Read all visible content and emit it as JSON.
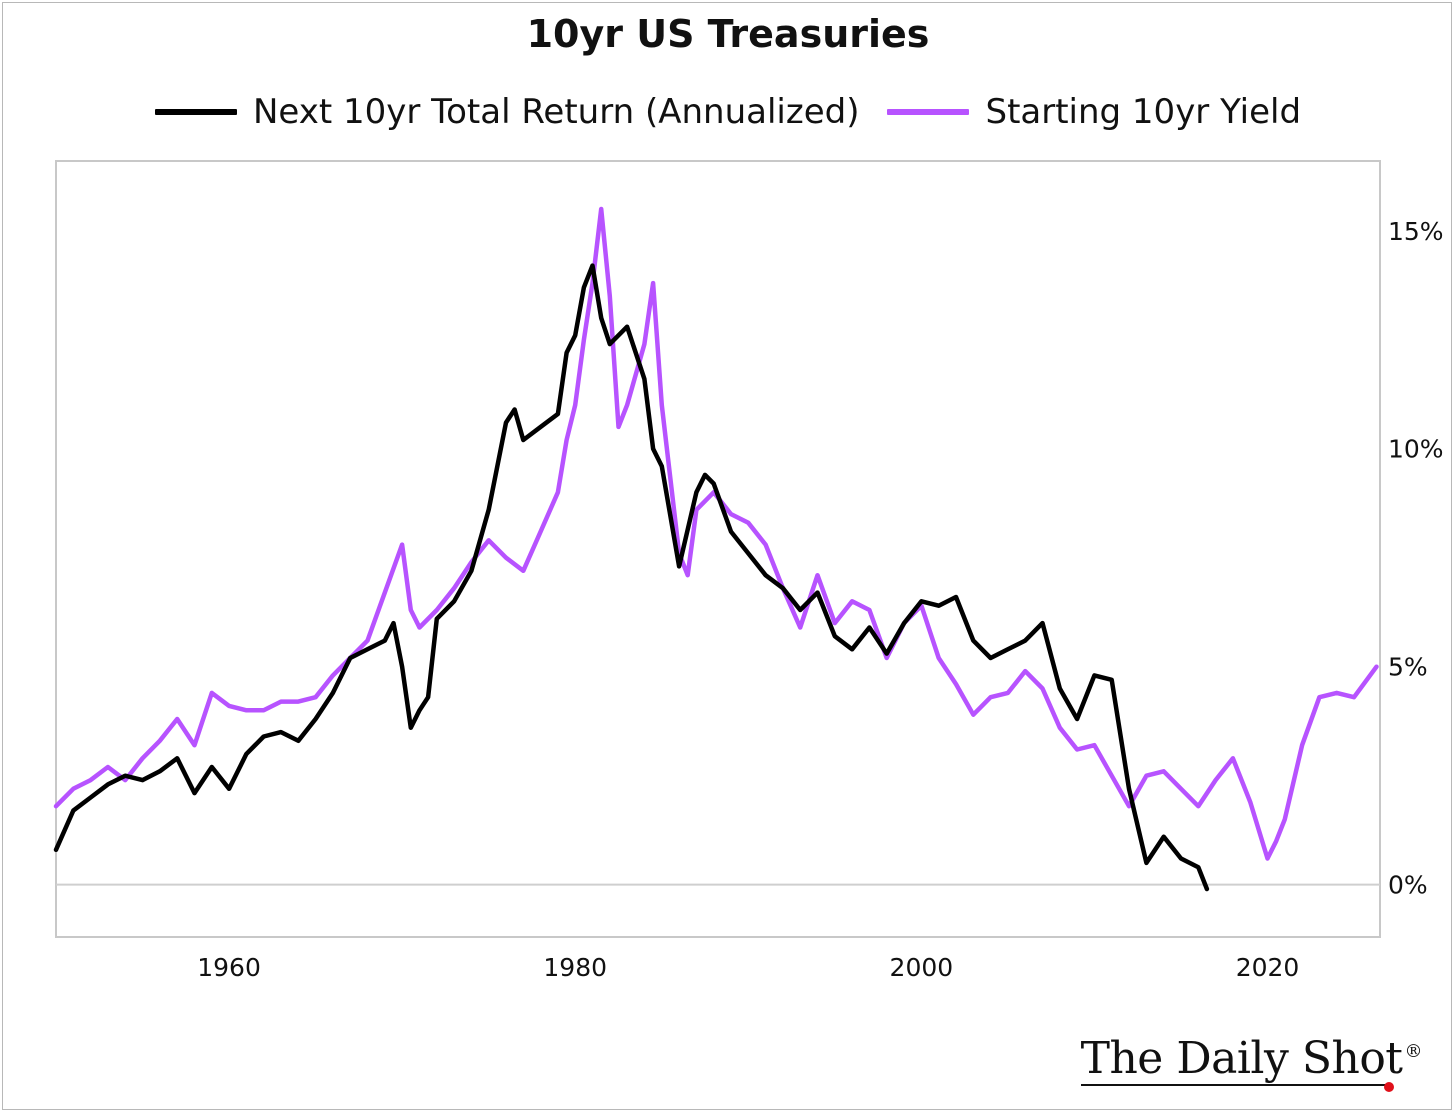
{
  "chart_data": {
    "type": "line",
    "title": "10yr US Treasuries",
    "xlabel": "",
    "ylabel": "",
    "xlim": [
      1950,
      2026.5
    ],
    "ylim": [
      -1.2,
      16.6
    ],
    "x_ticks": [
      1960,
      1980,
      2000,
      2020
    ],
    "x_tick_labels": [
      "1960",
      "1980",
      "2000",
      "2020"
    ],
    "y_ticks": [
      0,
      5,
      10,
      15
    ],
    "y_tick_labels": [
      "0%",
      "5%",
      "10%",
      "15%"
    ],
    "y_axis_side": "right",
    "grid": "horizontal line at 0% only",
    "legend_position": "top-center",
    "series": [
      {
        "name": "Next 10yr Total Return (Annualized)",
        "color": "#000000",
        "x": [
          1950,
          1951,
          1952,
          1953,
          1954,
          1955,
          1956,
          1957,
          1958,
          1959,
          1960,
          1961,
          1962,
          1963,
          1964,
          1965,
          1966,
          1967,
          1968,
          1969,
          1969.5,
          1970,
          1970.5,
          1971,
          1971.5,
          1972,
          1973,
          1974,
          1975,
          1976,
          1976.5,
          1977,
          1978,
          1979,
          1979.5,
          1980,
          1980.5,
          1981,
          1981.5,
          1982,
          1983,
          1984,
          1984.5,
          1985,
          1986,
          1987,
          1987.5,
          1988,
          1989,
          1990,
          1991,
          1992,
          1993,
          1994,
          1995,
          1996,
          1997,
          1998,
          1999,
          2000,
          2001,
          2002,
          2003,
          2004,
          2005,
          2006,
          2007,
          2008,
          2009,
          2010,
          2011,
          2012,
          2013,
          2014,
          2015,
          2016,
          2016.5
        ],
        "values": [
          0.8,
          1.7,
          2.0,
          2.3,
          2.5,
          2.4,
          2.6,
          2.9,
          2.1,
          2.7,
          2.2,
          3.0,
          3.4,
          3.5,
          3.3,
          3.8,
          4.4,
          5.2,
          5.4,
          5.6,
          6.0,
          5.0,
          3.6,
          4.0,
          4.3,
          6.1,
          6.5,
          7.2,
          8.6,
          10.6,
          10.9,
          10.2,
          10.5,
          10.8,
          12.2,
          12.6,
          13.7,
          14.2,
          13.0,
          12.4,
          12.8,
          11.6,
          10.0,
          9.6,
          7.3,
          9.0,
          9.4,
          9.2,
          8.1,
          7.6,
          7.1,
          6.8,
          6.3,
          6.7,
          5.7,
          5.4,
          5.9,
          5.3,
          6.0,
          6.5,
          6.4,
          6.6,
          5.6,
          5.2,
          5.4,
          5.6,
          6.0,
          4.5,
          3.8,
          4.8,
          4.7,
          2.2,
          0.5,
          1.1,
          0.6,
          0.4,
          -0.1
        ]
      },
      {
        "name": "Starting 10yr Yield",
        "color": "#b753ff",
        "x": [
          1950,
          1951,
          1952,
          1953,
          1954,
          1955,
          1956,
          1957,
          1958,
          1959,
          1960,
          1961,
          1962,
          1963,
          1964,
          1965,
          1966,
          1967,
          1968,
          1969,
          1970,
          1970.5,
          1971,
          1972,
          1973,
          1974,
          1975,
          1976,
          1977,
          1978,
          1979,
          1979.5,
          1980,
          1980.5,
          1981,
          1981.5,
          1982,
          1982.5,
          1983,
          1984,
          1984.5,
          1985,
          1986,
          1986.5,
          1987,
          1988,
          1989,
          1990,
          1991,
          1992,
          1993,
          1994,
          1995,
          1996,
          1997,
          1998,
          1999,
          2000,
          2001,
          2002,
          2003,
          2004,
          2005,
          2006,
          2007,
          2008,
          2009,
          2010,
          2011,
          2012,
          2013,
          2014,
          2015,
          2016,
          2017,
          2018,
          2019,
          2020,
          2020.5,
          2021,
          2022,
          2023,
          2024,
          2025,
          2026.3
        ],
        "values": [
          1.8,
          2.2,
          2.4,
          2.7,
          2.4,
          2.9,
          3.3,
          3.8,
          3.2,
          4.4,
          4.1,
          4.0,
          4.0,
          4.2,
          4.2,
          4.3,
          4.8,
          5.2,
          5.6,
          6.7,
          7.8,
          6.3,
          5.9,
          6.3,
          6.8,
          7.4,
          7.9,
          7.5,
          7.2,
          8.1,
          9.0,
          10.2,
          11.0,
          12.5,
          13.8,
          15.5,
          13.5,
          10.5,
          11.0,
          12.4,
          13.8,
          11.0,
          7.6,
          7.1,
          8.6,
          9.0,
          8.5,
          8.3,
          7.8,
          6.8,
          5.9,
          7.1,
          6.0,
          6.5,
          6.3,
          5.2,
          6.0,
          6.4,
          5.2,
          4.6,
          3.9,
          4.3,
          4.4,
          4.9,
          4.5,
          3.6,
          3.1,
          3.2,
          2.5,
          1.8,
          2.5,
          2.6,
          2.2,
          1.8,
          2.4,
          2.9,
          1.9,
          0.6,
          1.0,
          1.5,
          3.2,
          4.3,
          4.4,
          4.3,
          5.0
        ]
      }
    ]
  },
  "brand": {
    "name": "The Daily Shot",
    "reg_mark": "®"
  }
}
